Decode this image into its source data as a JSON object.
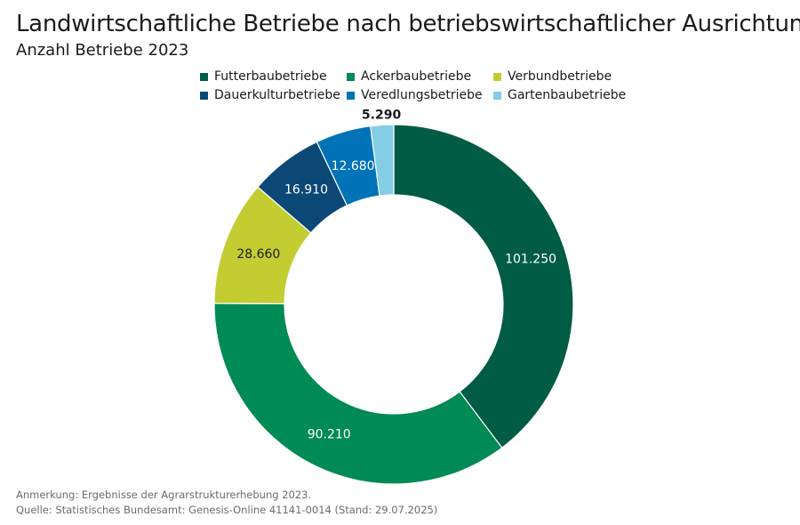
{
  "chart_data": {
    "type": "pie",
    "variant": "donut",
    "title": "Landwirtschaftliche Betriebe nach betriebswirtschaftlicher Ausrichtung",
    "subtitle": "Anzahl Betriebe 2023",
    "legend_position": "top",
    "series": [
      {
        "name": "Futterbaubetriebe",
        "value": 101250,
        "label": "101.250",
        "color": "#005c45",
        "label_color": "#ffffff"
      },
      {
        "name": "Ackerbaubetriebe",
        "value": 90210,
        "label": "90.210",
        "color": "#008a55",
        "label_color": "#ffffff"
      },
      {
        "name": "Verbundbetriebe",
        "value": 28660,
        "label": "28.660",
        "color": "#c3cc31",
        "label_color": "#1a1a1a"
      },
      {
        "name": "Dauerkulturbetriebe",
        "value": 16910,
        "label": "16.910",
        "color": "#0b4875",
        "label_color": "#ffffff"
      },
      {
        "name": "Veredlungsbetriebe",
        "value": 12680,
        "label": "12.680",
        "color": "#0073b8",
        "label_color": "#ffffff"
      },
      {
        "name": "Gartenbaubetriebe",
        "value": 5290,
        "label": "5.290",
        "color": "#84cde6",
        "label_color": "#1a1a1a"
      }
    ]
  },
  "footer": {
    "note": "Anmerkung: Ergebnisse der Agrarstrukturerhebung 2023.",
    "source": "Quelle: Statistisches Bundesamt: Genesis-Online 41141-0014 (Stand: 29.07.2025)"
  }
}
